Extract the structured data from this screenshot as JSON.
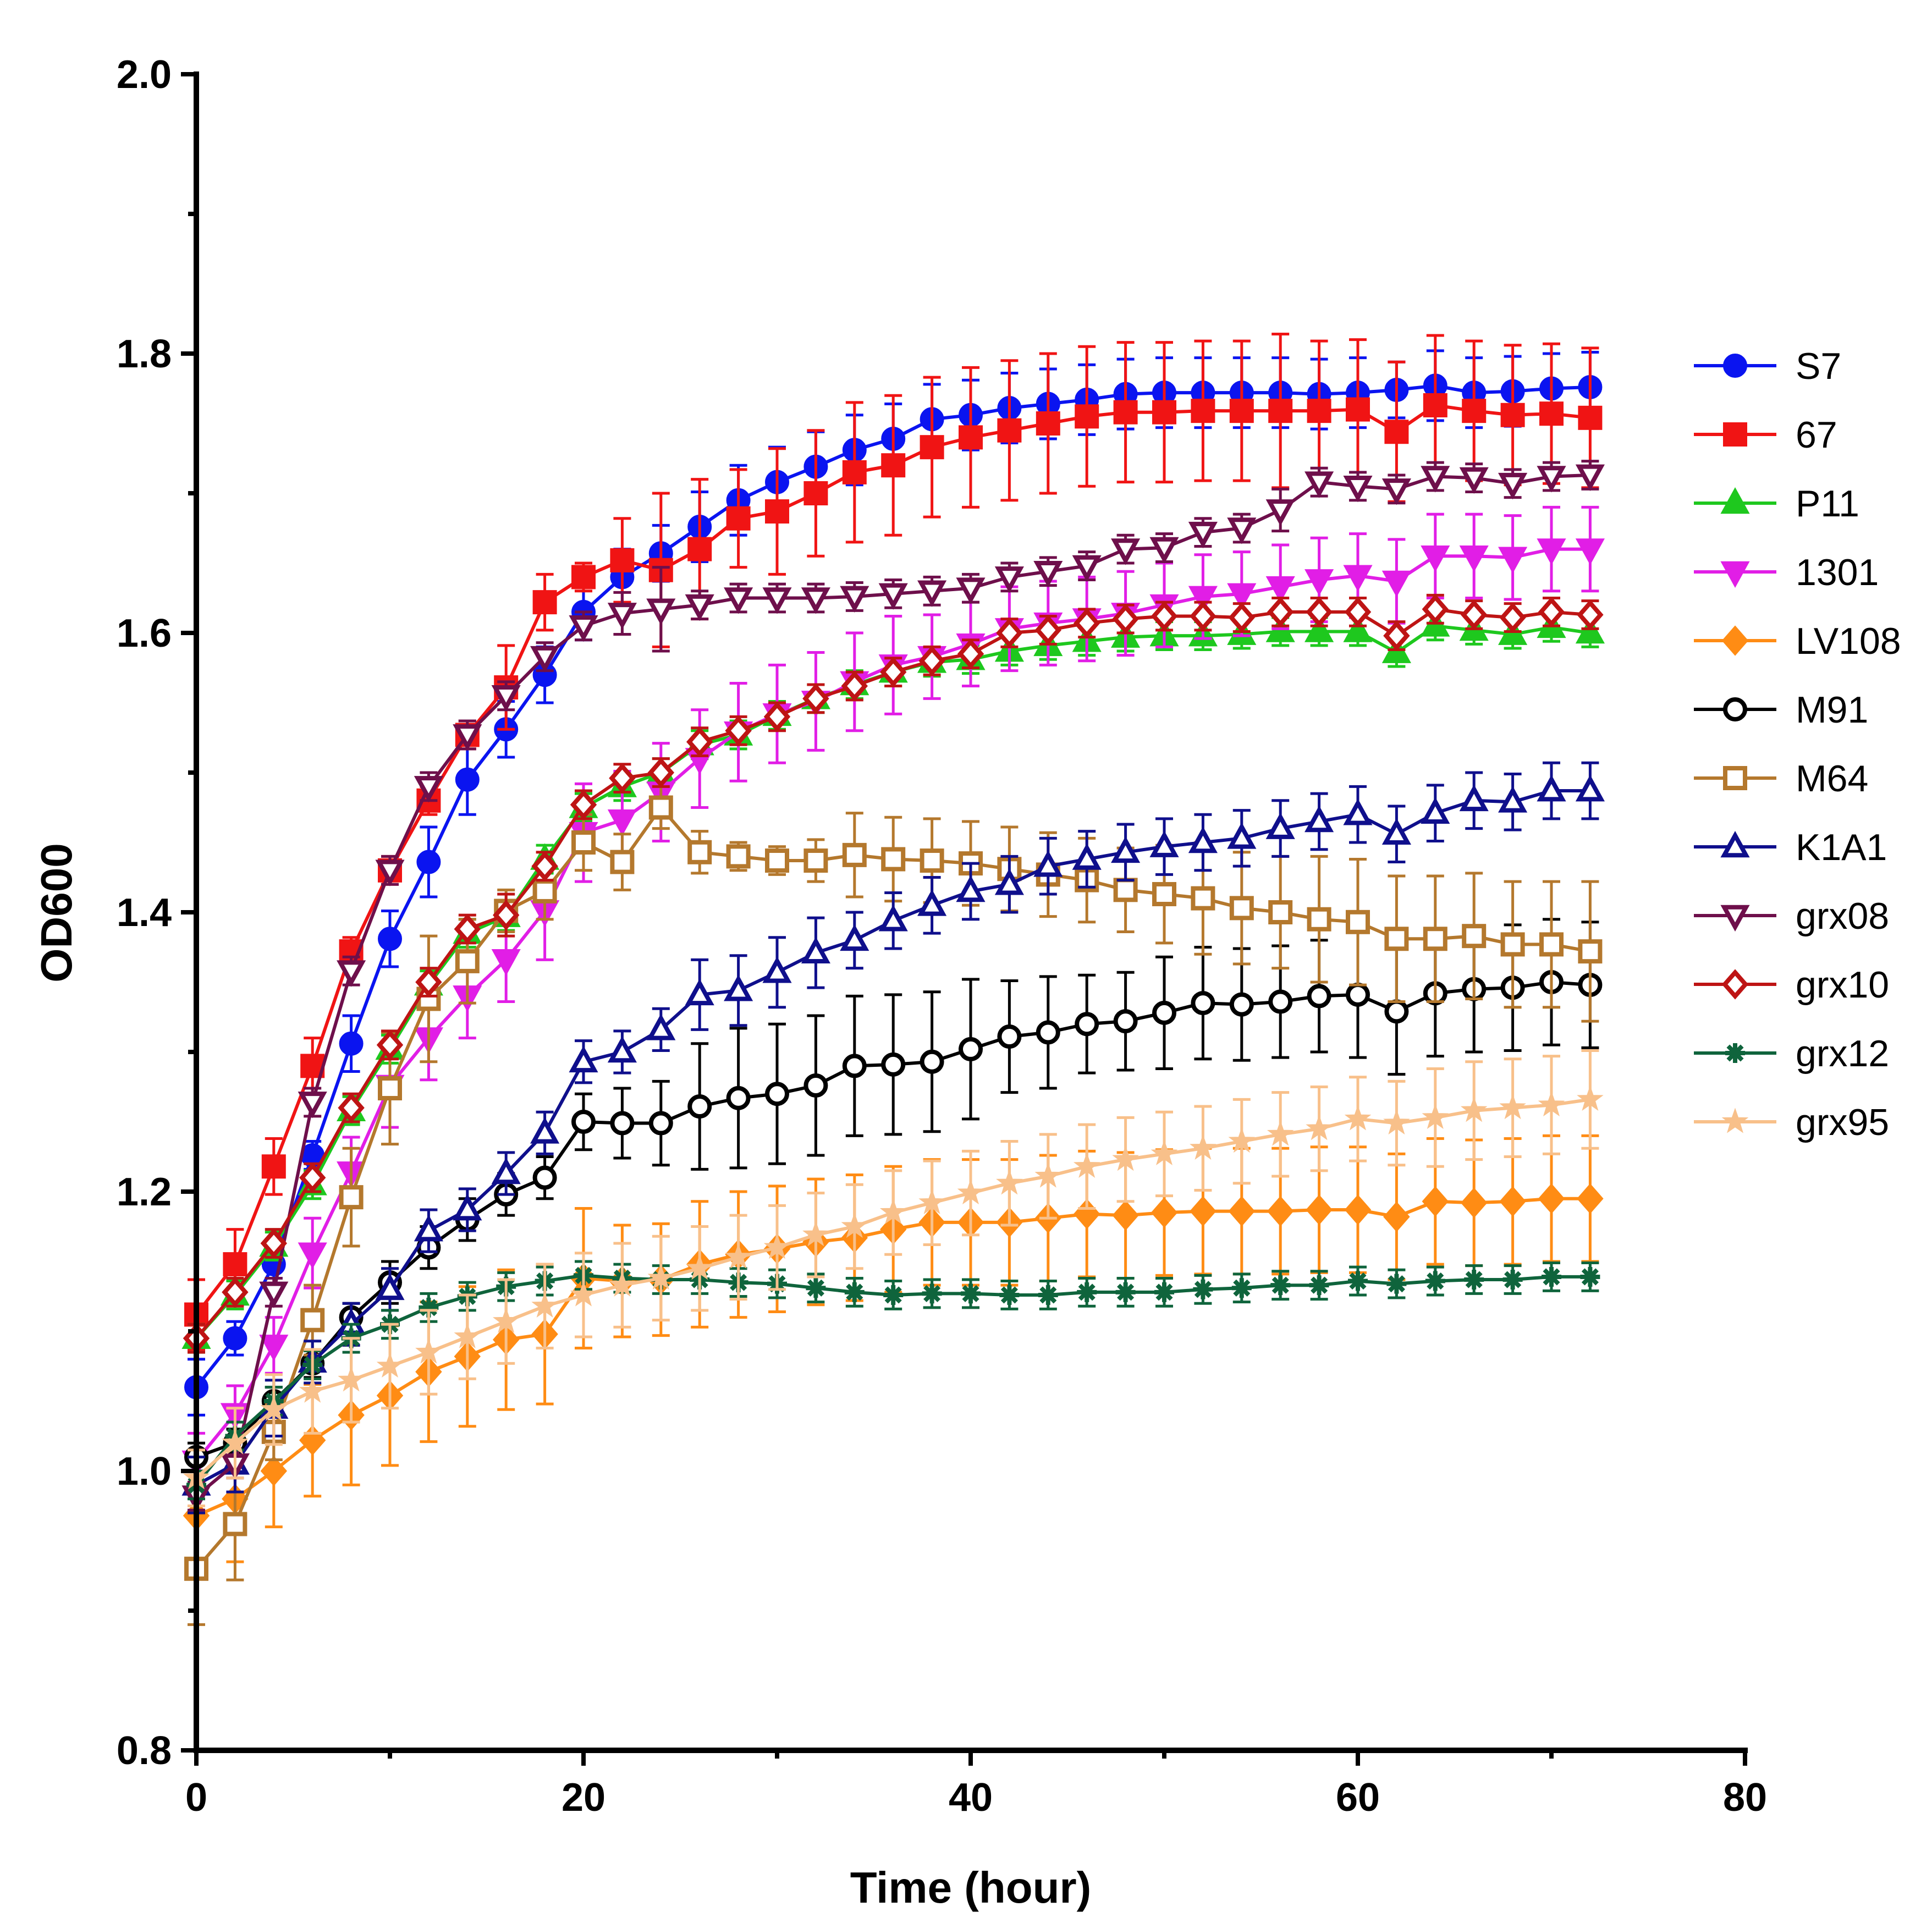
{
  "chart_data": {
    "type": "line",
    "title": "",
    "xlabel": "Time (hour)",
    "ylabel": "OD600",
    "xlim": [
      0,
      80
    ],
    "ylim": [
      0.8,
      2.0
    ],
    "xticks": [
      0,
      20,
      40,
      60,
      80
    ],
    "xtick_labels": [
      "0",
      "20",
      "40",
      "60",
      "80"
    ],
    "yticks": [
      0.8,
      1.0,
      1.2,
      1.4,
      1.6,
      1.8,
      2.0
    ],
    "ytick_labels": [
      "0.8",
      "1.0",
      "1.2",
      "1.4",
      "1.6",
      "1.8",
      "2.0"
    ],
    "legend_position": "right",
    "x": [
      0,
      2,
      4,
      6,
      8,
      10,
      12,
      14,
      16,
      18,
      20,
      22,
      24,
      26,
      28,
      30,
      32,
      34,
      36,
      38,
      40,
      42,
      44,
      46,
      48,
      50,
      52,
      54,
      56,
      58,
      60,
      62,
      64,
      66,
      68,
      70,
      72
    ],
    "series": [
      {
        "name": "S7",
        "color": "#0a14f0",
        "marker": "circle",
        "filled": true,
        "values": [
          1.06,
          1.095,
          1.148,
          1.226,
          1.306,
          1.381,
          1.436,
          1.495,
          1.531,
          1.57,
          1.615,
          1.64,
          1.657,
          1.676,
          1.695,
          1.708,
          1.719,
          1.731,
          1.739,
          1.753,
          1.756,
          1.761,
          1.764,
          1.767,
          1.771,
          1.772,
          1.772,
          1.772,
          1.772,
          1.771,
          1.772,
          1.774,
          1.777,
          1.772,
          1.773,
          1.775,
          1.776
        ],
        "errors": [
          0.02,
          0.012,
          0.01,
          0.01,
          0.02,
          0.02,
          0.025,
          0.025,
          0.02,
          0.02,
          0.02,
          0.02,
          0.02,
          0.025,
          0.025,
          0.025,
          0.025,
          0.025,
          0.025,
          0.025,
          0.025,
          0.025,
          0.025,
          0.025,
          0.025,
          0.025,
          0.025,
          0.025,
          0.025,
          0.025,
          0.025,
          0.02,
          0.025,
          0.025,
          0.025,
          0.025,
          0.025
        ]
      },
      {
        "name": "67",
        "color": "#f01414",
        "marker": "square",
        "filled": true,
        "values": [
          1.112,
          1.148,
          1.218,
          1.29,
          1.372,
          1.43,
          1.48,
          1.527,
          1.561,
          1.622,
          1.64,
          1.652,
          1.645,
          1.66,
          1.682,
          1.687,
          1.7,
          1.715,
          1.72,
          1.733,
          1.74,
          1.745,
          1.75,
          1.755,
          1.758,
          1.758,
          1.759,
          1.759,
          1.759,
          1.759,
          1.76,
          1.744,
          1.763,
          1.759,
          1.756,
          1.757,
          1.754
        ],
        "errors": [
          0.025,
          0.025,
          0.02,
          0.02,
          0.01,
          0.01,
          0.01,
          0.01,
          0.03,
          0.02,
          0.01,
          0.03,
          0.055,
          0.05,
          0.035,
          0.045,
          0.045,
          0.05,
          0.05,
          0.05,
          0.05,
          0.05,
          0.05,
          0.05,
          0.05,
          0.05,
          0.05,
          0.05,
          0.055,
          0.05,
          0.05,
          0.05,
          0.05,
          0.05,
          0.05,
          0.05,
          0.05
        ]
      },
      {
        "name": "P11",
        "color": "#1ec81e",
        "marker": "triangle-up",
        "filled": true,
        "values": [
          1.095,
          1.126,
          1.161,
          1.205,
          1.258,
          1.302,
          1.348,
          1.385,
          1.397,
          1.438,
          1.475,
          1.49,
          1.5,
          1.52,
          1.527,
          1.541,
          1.553,
          1.563,
          1.572,
          1.579,
          1.581,
          1.587,
          1.591,
          1.594,
          1.597,
          1.598,
          1.598,
          1.599,
          1.601,
          1.601,
          1.601,
          1.586,
          1.605,
          1.602,
          1.599,
          1.604,
          1.6
        ],
        "errors": [
          0.01,
          0.01,
          0.01,
          0.01,
          0.01,
          0.01,
          0.01,
          0.01,
          0.01,
          0.01,
          0.01,
          0.01,
          0.01,
          0.01,
          0.01,
          0.01,
          0.01,
          0.01,
          0.01,
          0.01,
          0.01,
          0.01,
          0.01,
          0.01,
          0.01,
          0.01,
          0.01,
          0.01,
          0.01,
          0.01,
          0.01,
          0.01,
          0.01,
          0.01,
          0.01,
          0.01,
          0.01
        ]
      },
      {
        "name": "1301",
        "color": "#e11ee6",
        "marker": "triangle-down",
        "filled": true,
        "values": [
          1.007,
          1.041,
          1.09,
          1.156,
          1.214,
          1.276,
          1.31,
          1.34,
          1.366,
          1.401,
          1.457,
          1.466,
          1.486,
          1.51,
          1.529,
          1.542,
          1.551,
          1.565,
          1.577,
          1.583,
          1.592,
          1.603,
          1.607,
          1.61,
          1.614,
          1.62,
          1.626,
          1.628,
          1.633,
          1.638,
          1.641,
          1.637,
          1.655,
          1.655,
          1.654,
          1.66,
          1.66
        ],
        "errors": [
          0.02,
          0.02,
          0.02,
          0.025,
          0.025,
          0.03,
          0.03,
          0.03,
          0.03,
          0.035,
          0.035,
          0.035,
          0.035,
          0.035,
          0.035,
          0.035,
          0.035,
          0.035,
          0.035,
          0.03,
          0.03,
          0.03,
          0.03,
          0.03,
          0.03,
          0.03,
          0.03,
          0.03,
          0.03,
          0.03,
          0.03,
          0.03,
          0.03,
          0.03,
          0.03,
          0.03,
          0.03
        ]
      },
      {
        "name": "LV108",
        "color": "#ff8c14",
        "marker": "diamond",
        "filled": true,
        "values": [
          0.968,
          0.98,
          1.0,
          1.022,
          1.04,
          1.054,
          1.071,
          1.082,
          1.094,
          1.098,
          1.138,
          1.136,
          1.137,
          1.148,
          1.155,
          1.159,
          1.164,
          1.167,
          1.173,
          1.178,
          1.178,
          1.178,
          1.181,
          1.184,
          1.183,
          1.185,
          1.186,
          1.186,
          1.186,
          1.187,
          1.187,
          1.182,
          1.193,
          1.192,
          1.193,
          1.195,
          1.195
        ],
        "errors": [
          0.04,
          0.045,
          0.04,
          0.04,
          0.05,
          0.05,
          0.05,
          0.05,
          0.05,
          0.05,
          0.05,
          0.04,
          0.04,
          0.045,
          0.045,
          0.045,
          0.045,
          0.045,
          0.045,
          0.045,
          0.045,
          0.045,
          0.045,
          0.045,
          0.045,
          0.045,
          0.045,
          0.045,
          0.045,
          0.045,
          0.045,
          0.045,
          0.045,
          0.045,
          0.045,
          0.045,
          0.045
        ]
      },
      {
        "name": "M91",
        "color": "#000000",
        "marker": "circle",
        "filled": false,
        "values": [
          1.01,
          1.02,
          1.05,
          1.077,
          1.11,
          1.135,
          1.16,
          1.18,
          1.198,
          1.21,
          1.25,
          1.249,
          1.249,
          1.261,
          1.267,
          1.27,
          1.276,
          1.29,
          1.291,
          1.293,
          1.302,
          1.311,
          1.314,
          1.32,
          1.322,
          1.328,
          1.335,
          1.334,
          1.336,
          1.34,
          1.341,
          1.329,
          1.342,
          1.345,
          1.346,
          1.35,
          1.348
        ],
        "errors": [
          0.01,
          0.01,
          0.01,
          0.01,
          0.01,
          0.015,
          0.015,
          0.015,
          0.015,
          0.015,
          0.02,
          0.025,
          0.03,
          0.045,
          0.05,
          0.05,
          0.05,
          0.05,
          0.05,
          0.05,
          0.05,
          0.04,
          0.04,
          0.035,
          0.035,
          0.04,
          0.04,
          0.04,
          0.04,
          0.04,
          0.045,
          0.045,
          0.045,
          0.045,
          0.045,
          0.045,
          0.045
        ]
      },
      {
        "name": "M64",
        "color": "#b4782d",
        "marker": "square",
        "filled": false,
        "values": [
          0.93,
          0.962,
          1.028,
          1.108,
          1.196,
          1.274,
          1.338,
          1.365,
          1.401,
          1.415,
          1.45,
          1.436,
          1.475,
          1.443,
          1.44,
          1.437,
          1.437,
          1.441,
          1.438,
          1.437,
          1.435,
          1.431,
          1.427,
          1.423,
          1.416,
          1.413,
          1.41,
          1.403,
          1.4,
          1.395,
          1.393,
          1.381,
          1.381,
          1.383,
          1.377,
          1.377,
          1.372
        ],
        "errors": [
          0.04,
          0.04,
          0.02,
          0.025,
          0.035,
          0.04,
          0.045,
          0.03,
          0.015,
          0.02,
          0.02,
          0.02,
          0.015,
          0.015,
          0.01,
          0.01,
          0.015,
          0.03,
          0.03,
          0.03,
          0.03,
          0.03,
          0.03,
          0.03,
          0.03,
          0.035,
          0.04,
          0.04,
          0.04,
          0.045,
          0.045,
          0.045,
          0.045,
          0.045,
          0.045,
          0.045,
          0.05
        ]
      },
      {
        "name": "K1A1",
        "color": "#0f0f8c",
        "marker": "triangle-up",
        "filled": false,
        "values": [
          0.99,
          1.005,
          1.045,
          1.078,
          1.105,
          1.13,
          1.172,
          1.187,
          1.213,
          1.242,
          1.293,
          1.3,
          1.316,
          1.341,
          1.344,
          1.357,
          1.371,
          1.38,
          1.394,
          1.405,
          1.415,
          1.42,
          1.433,
          1.438,
          1.443,
          1.447,
          1.45,
          1.453,
          1.46,
          1.465,
          1.47,
          1.456,
          1.471,
          1.48,
          1.479,
          1.487,
          1.487
        ],
        "errors": [
          0.02,
          0.02,
          0.02,
          0.015,
          0.015,
          0.015,
          0.015,
          0.015,
          0.015,
          0.015,
          0.015,
          0.015,
          0.015,
          0.025,
          0.025,
          0.025,
          0.025,
          0.02,
          0.02,
          0.02,
          0.02,
          0.02,
          0.02,
          0.02,
          0.02,
          0.02,
          0.02,
          0.02,
          0.02,
          0.02,
          0.02,
          0.02,
          0.02,
          0.02,
          0.02,
          0.02,
          0.02
        ]
      },
      {
        "name": "grx08",
        "color": "#6e0f4b",
        "marker": "triangle-down",
        "filled": false,
        "values": [
          0.982,
          1.005,
          1.128,
          1.264,
          1.358,
          1.43,
          1.49,
          1.527,
          1.555,
          1.583,
          1.605,
          1.614,
          1.617,
          1.62,
          1.625,
          1.625,
          1.625,
          1.626,
          1.628,
          1.63,
          1.632,
          1.64,
          1.644,
          1.648,
          1.66,
          1.661,
          1.672,
          1.675,
          1.688,
          1.708,
          1.705,
          1.703,
          1.712,
          1.711,
          1.707,
          1.712,
          1.713
        ],
        "errors": [
          0.01,
          0.01,
          0.01,
          0.01,
          0.01,
          0.01,
          0.01,
          0.01,
          0.01,
          0.01,
          0.01,
          0.015,
          0.03,
          0.01,
          0.01,
          0.01,
          0.01,
          0.01,
          0.01,
          0.01,
          0.01,
          0.01,
          0.01,
          0.01,
          0.01,
          0.01,
          0.01,
          0.01,
          0.015,
          0.01,
          0.01,
          0.01,
          0.01,
          0.01,
          0.01,
          0.01,
          0.01
        ]
      },
      {
        "name": "grx10",
        "color": "#be1414",
        "marker": "diamond",
        "filled": false,
        "values": [
          1.095,
          1.128,
          1.163,
          1.21,
          1.26,
          1.305,
          1.35,
          1.388,
          1.398,
          1.433,
          1.477,
          1.496,
          1.5,
          1.522,
          1.53,
          1.54,
          1.553,
          1.562,
          1.572,
          1.58,
          1.585,
          1.6,
          1.602,
          1.607,
          1.61,
          1.612,
          1.612,
          1.611,
          1.615,
          1.615,
          1.615,
          1.598,
          1.617,
          1.613,
          1.611,
          1.615,
          1.613
        ],
        "errors": [
          0.01,
          0.01,
          0.01,
          0.01,
          0.01,
          0.01,
          0.01,
          0.01,
          0.015,
          0.01,
          0.01,
          0.01,
          0.01,
          0.01,
          0.01,
          0.01,
          0.01,
          0.01,
          0.01,
          0.01,
          0.01,
          0.01,
          0.01,
          0.01,
          0.01,
          0.01,
          0.01,
          0.01,
          0.01,
          0.01,
          0.01,
          0.01,
          0.01,
          0.01,
          0.01,
          0.01,
          0.01
        ]
      },
      {
        "name": "grx12",
        "color": "#0f643c",
        "marker": "asterisk",
        "filled": true,
        "values": [
          0.99,
          1.025,
          1.05,
          1.076,
          1.095,
          1.105,
          1.117,
          1.125,
          1.132,
          1.136,
          1.14,
          1.138,
          1.137,
          1.137,
          1.135,
          1.134,
          1.131,
          1.128,
          1.126,
          1.127,
          1.127,
          1.126,
          1.126,
          1.128,
          1.128,
          1.128,
          1.13,
          1.131,
          1.133,
          1.133,
          1.136,
          1.134,
          1.136,
          1.137,
          1.137,
          1.139,
          1.139
        ],
        "errors": [
          0.01,
          0.01,
          0.01,
          0.01,
          0.01,
          0.01,
          0.01,
          0.01,
          0.01,
          0.01,
          0.01,
          0.01,
          0.01,
          0.01,
          0.01,
          0.01,
          0.01,
          0.01,
          0.01,
          0.01,
          0.01,
          0.01,
          0.01,
          0.01,
          0.01,
          0.01,
          0.01,
          0.01,
          0.01,
          0.01,
          0.01,
          0.01,
          0.01,
          0.01,
          0.01,
          0.01,
          0.01
        ]
      },
      {
        "name": "grx95",
        "color": "#f8c08a",
        "marker": "star",
        "filled": true,
        "values": [
          0.995,
          1.02,
          1.044,
          1.057,
          1.065,
          1.075,
          1.085,
          1.096,
          1.107,
          1.118,
          1.126,
          1.133,
          1.138,
          1.145,
          1.153,
          1.16,
          1.169,
          1.175,
          1.185,
          1.192,
          1.199,
          1.206,
          1.211,
          1.218,
          1.223,
          1.227,
          1.231,
          1.236,
          1.241,
          1.245,
          1.252,
          1.249,
          1.253,
          1.258,
          1.26,
          1.262,
          1.266
        ],
        "errors": [
          0.02,
          0.025,
          0.025,
          0.03,
          0.03,
          0.03,
          0.03,
          0.03,
          0.03,
          0.03,
          0.03,
          0.03,
          0.03,
          0.03,
          0.03,
          0.03,
          0.03,
          0.03,
          0.03,
          0.03,
          0.03,
          0.03,
          0.03,
          0.03,
          0.03,
          0.03,
          0.03,
          0.03,
          0.03,
          0.03,
          0.03,
          0.03,
          0.035,
          0.035,
          0.035,
          0.035,
          0.035
        ]
      }
    ]
  }
}
